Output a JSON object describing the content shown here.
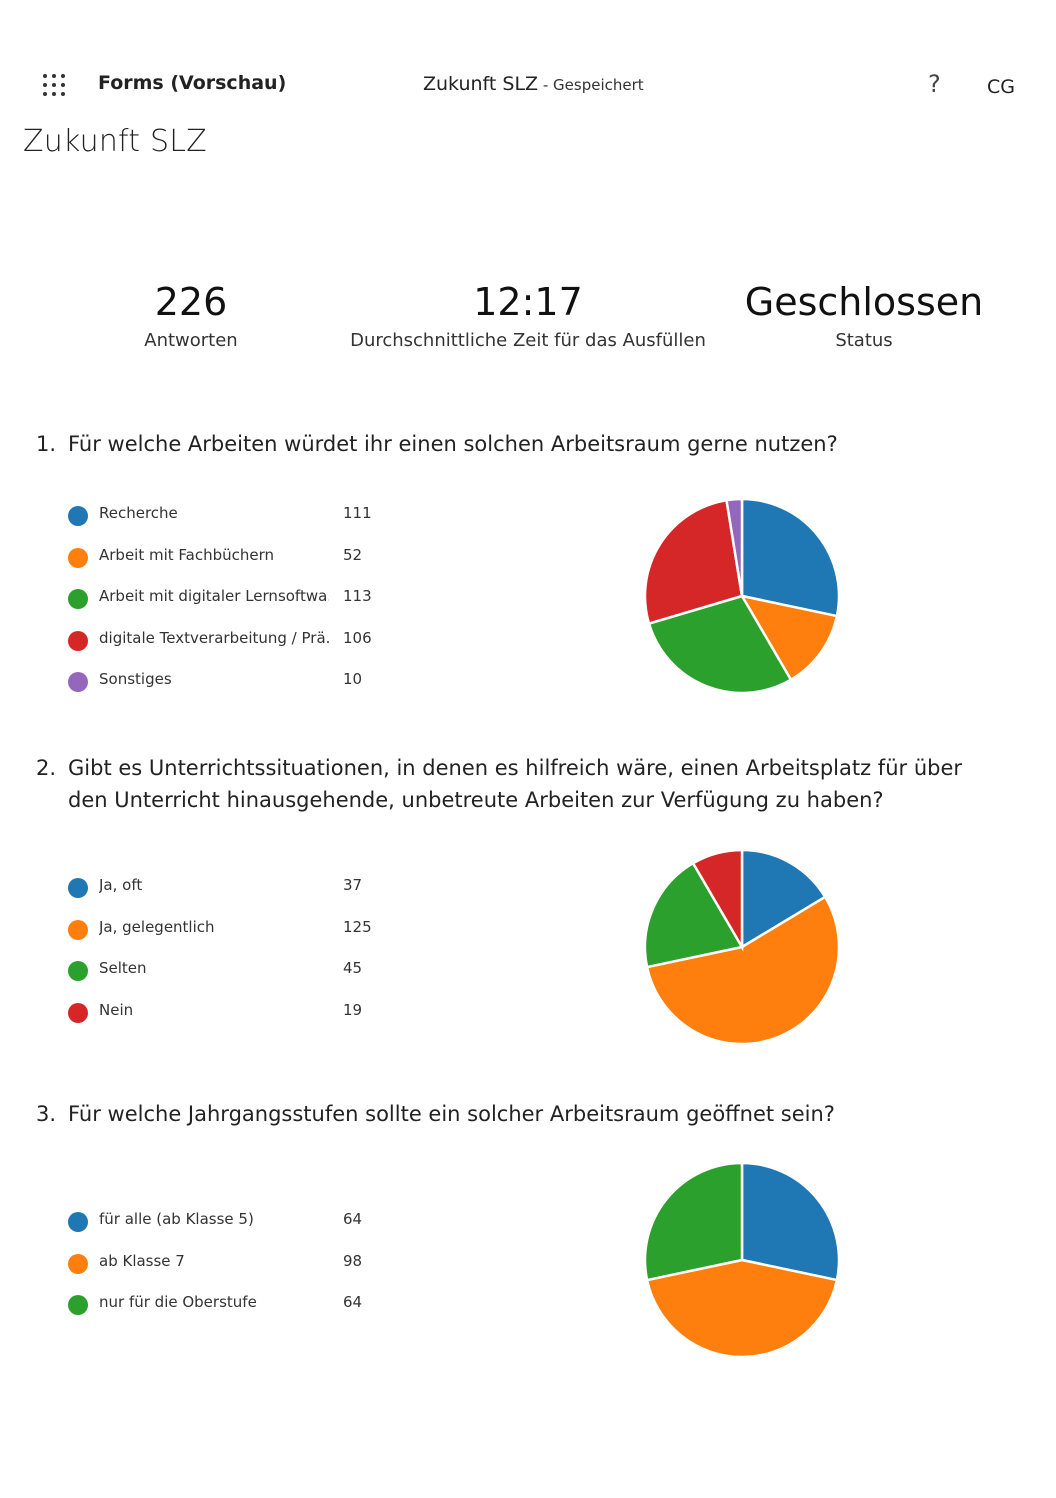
{
  "header": {
    "app_name": "Forms (Vorschau)",
    "doc_title": "Zukunft SLZ",
    "separator": " - ",
    "saved_status": "Gespeichert",
    "help_glyph": "?",
    "user_initials": "CG",
    "waffle_icon": "app-launcher-icon"
  },
  "page_title": "Zukunft SLZ",
  "stats": [
    {
      "value": "226",
      "label": "Antworten"
    },
    {
      "value": "12:17",
      "label": "Durchschnittliche Zeit für das Ausfüllen"
    },
    {
      "value": "Geschlossen",
      "label": "Status"
    }
  ],
  "questions": [
    {
      "number": "1.",
      "text": "Für welche Arbeiten würdet ihr einen solchen Arbeitsraum gerne nutzen?",
      "options": [
        {
          "label": "Recherche",
          "count": "111",
          "color": "#1f77b4"
        },
        {
          "label": "Arbeit mit Fachbüchern",
          "count": "52",
          "color": "#ff7f0e"
        },
        {
          "label": "Arbeit mit digitaler Lernsoftwa...",
          "count": "113",
          "color": "#2ca02c"
        },
        {
          "label": "digitale Textverarbeitung / Prä...",
          "count": "106",
          "color": "#d62728"
        },
        {
          "label": "Sonstiges",
          "count": "10",
          "color": "#9467bd"
        }
      ]
    },
    {
      "number": "2.",
      "text": "Gibt es Unterrichtssituationen, in denen es hilfreich wäre, einen Arbeitsplatz für über den Unterricht hinausgehende, unbetreute Arbeiten zur Verfügung zu haben?",
      "options": [
        {
          "label": "Ja, oft",
          "count": "37",
          "color": "#1f77b4"
        },
        {
          "label": "Ja, gelegentlich",
          "count": "125",
          "color": "#ff7f0e"
        },
        {
          "label": "Selten",
          "count": "45",
          "color": "#2ca02c"
        },
        {
          "label": "Nein",
          "count": "19",
          "color": "#d62728"
        }
      ]
    },
    {
      "number": "3.",
      "text": "Für welche Jahrgangsstufen sollte ein solcher Arbeitsraum geöffnet sein?",
      "options": [
        {
          "label": "für alle (ab Klasse 5)",
          "count": "64",
          "color": "#1f77b4"
        },
        {
          "label": "ab Klasse 7",
          "count": "98",
          "color": "#ff7f0e"
        },
        {
          "label": "nur für die Oberstufe",
          "count": "64",
          "color": "#2ca02c"
        }
      ]
    }
  ],
  "chart_data": [
    {
      "type": "pie",
      "categories": [
        "Recherche",
        "Arbeit mit Fachbüchern",
        "Arbeit mit digitaler Lernsoftwa...",
        "digitale Textverarbeitung / Prä...",
        "Sonstiges"
      ],
      "values": [
        111,
        52,
        113,
        106,
        10
      ],
      "colors": [
        "#1f77b4",
        "#ff7f0e",
        "#2ca02c",
        "#d62728",
        "#9467bd"
      ]
    },
    {
      "type": "pie",
      "categories": [
        "Ja, oft",
        "Ja, gelegentlich",
        "Selten",
        "Nein"
      ],
      "values": [
        37,
        125,
        45,
        19
      ],
      "colors": [
        "#1f77b4",
        "#ff7f0e",
        "#2ca02c",
        "#d62728"
      ]
    },
    {
      "type": "pie",
      "categories": [
        "für alle (ab Klasse 5)",
        "ab Klasse 7",
        "nur für die Oberstufe"
      ],
      "values": [
        64,
        98,
        64
      ],
      "colors": [
        "#1f77b4",
        "#ff7f0e",
        "#2ca02c"
      ]
    }
  ]
}
